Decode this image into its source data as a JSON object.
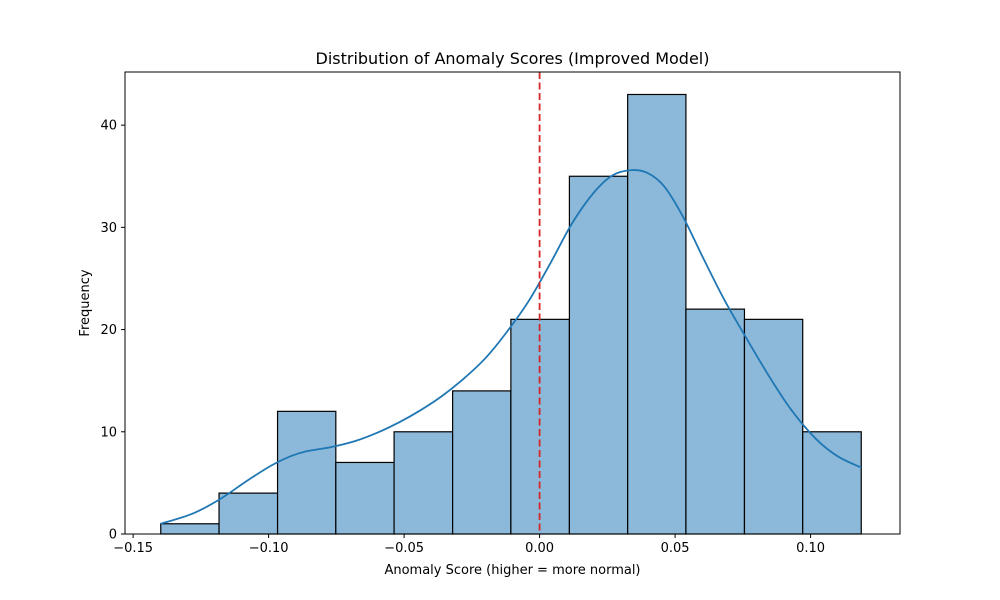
{
  "chart_data": {
    "type": "histogram",
    "title": "Distribution of Anomaly Scores (Improved Model)",
    "xlabel": "Anomaly Score (higher = more normal)",
    "ylabel": "Frequency",
    "xlim": [
      -0.153,
      0.133
    ],
    "ylim": [
      0,
      45.2
    ],
    "xticks": [
      -0.15,
      -0.1,
      -0.05,
      0.0,
      0.05,
      0.1
    ],
    "xtick_labels": [
      "−0.15",
      "−0.10",
      "−0.05",
      "0.00",
      "0.05",
      "0.10"
    ],
    "yticks": [
      0,
      10,
      20,
      30,
      40
    ],
    "ytick_labels": [
      "0",
      "10",
      "20",
      "30",
      "40"
    ],
    "bins": [
      {
        "x0": -0.1398,
        "x1": -0.1183,
        "count": 1
      },
      {
        "x0": -0.1183,
        "x1": -0.0967,
        "count": 4
      },
      {
        "x0": -0.0967,
        "x1": -0.0752,
        "count": 12
      },
      {
        "x0": -0.0752,
        "x1": -0.0537,
        "count": 7
      },
      {
        "x0": -0.0537,
        "x1": -0.0321,
        "count": 10
      },
      {
        "x0": -0.0321,
        "x1": -0.0106,
        "count": 14
      },
      {
        "x0": -0.0106,
        "x1": 0.011,
        "count": 21
      },
      {
        "x0": 0.011,
        "x1": 0.0325,
        "count": 35
      },
      {
        "x0": 0.0325,
        "x1": 0.054,
        "count": 43
      },
      {
        "x0": 0.054,
        "x1": 0.0756,
        "count": 22
      },
      {
        "x0": 0.0756,
        "x1": 0.0971,
        "count": 21
      },
      {
        "x0": 0.0971,
        "x1": 0.1187,
        "count": 10
      }
    ],
    "kde": {
      "x": [
        -0.1398,
        -0.128,
        -0.118,
        -0.108,
        -0.099,
        -0.092,
        -0.086,
        -0.077,
        -0.068,
        -0.06,
        -0.052,
        -0.044,
        -0.036,
        -0.028,
        -0.02,
        -0.012,
        -0.004,
        0.004,
        0.012,
        0.02,
        0.027,
        0.034,
        0.04,
        0.046,
        0.053,
        0.06,
        0.068,
        0.076,
        0.085,
        0.093,
        0.102,
        0.11,
        0.1187
      ],
      "y": [
        1.0,
        2.0,
        3.4,
        5.2,
        6.7,
        7.6,
        8.1,
        8.5,
        9.1,
        9.9,
        10.9,
        12.1,
        13.5,
        15.2,
        17.2,
        19.8,
        22.8,
        26.5,
        30.4,
        33.4,
        35.1,
        35.6,
        35.3,
        34.0,
        31.0,
        27.2,
        23.0,
        19.3,
        15.3,
        12.1,
        9.3,
        7.6,
        6.5
      ]
    },
    "threshold_line": {
      "x": 0.0,
      "color": "#d62728",
      "style": "dashed"
    },
    "colors": {
      "bar_fill": "#8cb9d9",
      "bar_edge": "#000000",
      "kde_line": "#1f77b4",
      "axes": "#000000"
    },
    "grid": false,
    "legend": "none"
  }
}
